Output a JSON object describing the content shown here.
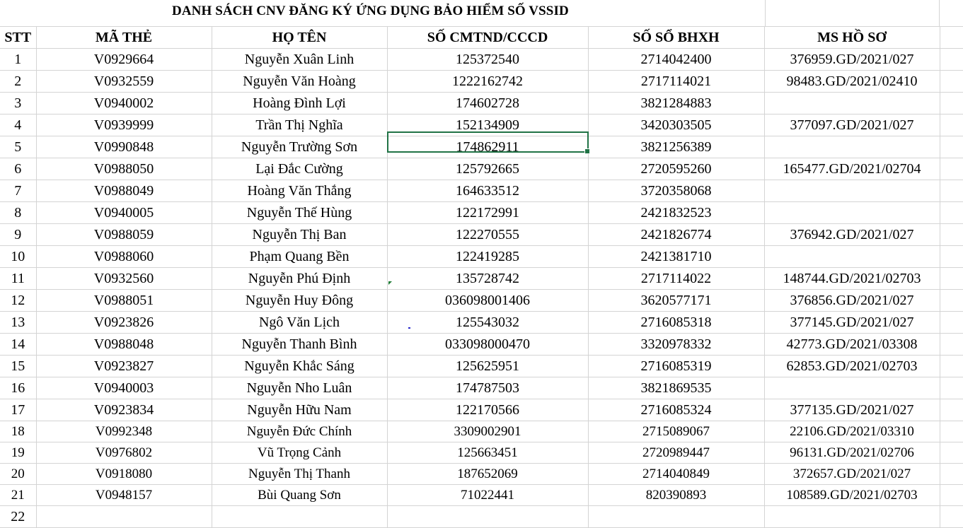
{
  "sheet": {
    "title": "DANH SÁCH CNV ĐĂNG KÝ ỨNG DỤNG BẢO HIỂM SỐ VSSID",
    "headers": [
      "STT",
      "MÃ THẺ",
      "HỌ TÊN",
      "SỐ CMTND/CCCD",
      "SỐ SỔ BHXH",
      "MS HỒ SƠ"
    ],
    "rows": [
      [
        "1",
        "V0929664",
        "Nguyễn Xuân Linh",
        "125372540",
        "2714042400",
        "376959.GD/2021/027"
      ],
      [
        "2",
        "V0932559",
        "Nguyễn Văn Hoàng",
        "1222162742",
        "2717114021",
        "98483.GD/2021/02410"
      ],
      [
        "3",
        "V0940002",
        "Hoàng Đình Lợi",
        "174602728",
        "3821284883",
        ""
      ],
      [
        "4",
        "V0939999",
        "Trần Thị Nghĩa",
        "152134909",
        "3420303505",
        "377097.GD/2021/027"
      ],
      [
        "5",
        "V0990848",
        "Nguyễn Trường Sơn",
        "174862911",
        "3821256389",
        ""
      ],
      [
        "6",
        "V0988050",
        "Lại Đắc Cường",
        "125792665",
        "2720595260",
        "165477.GD/2021/02704"
      ],
      [
        "7",
        "V0988049",
        "Hoàng Văn Thắng",
        "164633512",
        "3720358068",
        ""
      ],
      [
        "8",
        "V0940005",
        "Nguyễn Thế Hùng",
        "122172991",
        "2421832523",
        ""
      ],
      [
        "9",
        "V0988059",
        "Nguyễn Thị Ban",
        "122270555",
        "2421826774",
        "376942.GD/2021/027"
      ],
      [
        "10",
        "V0988060",
        "Phạm Quang Bền",
        "122419285",
        "2421381710",
        ""
      ],
      [
        "11",
        "V0932560",
        "Nguyễn Phú Định",
        "135728742",
        "2717114022",
        "148744.GD/2021/02703"
      ],
      [
        "12",
        "V0988051",
        "Nguyễn Huy Đông",
        "036098001406",
        "3620577171",
        "376856.GD/2021/027"
      ],
      [
        "13",
        "V0923826",
        "Ngô Văn Lịch",
        "125543032",
        "2716085318",
        "377145.GD/2021/027"
      ],
      [
        "14",
        "V0988048",
        "Nguyễn Thanh Bình",
        "033098000470",
        "3320978332",
        "42773.GD/2021/03308"
      ],
      [
        "15",
        "V0923827",
        "Nguyễn Khắc Sáng",
        "125625951",
        "2716085319",
        "62853.GD/2021/02703"
      ],
      [
        "16",
        "V0940003",
        "Nguyễn Nho Luân",
        "174787503",
        "3821869535",
        ""
      ],
      [
        "17",
        "V0923834",
        "Nguyễn Hữu Nam",
        "122170566",
        "2716085324",
        "377135.GD/2021/027"
      ],
      [
        "18",
        "V0992348",
        "Nguyễn Đức Chính",
        "3309002901",
        "2715089067",
        "22106.GD/2021/03310"
      ],
      [
        "19",
        "V0976802",
        "Vũ Trọng Cảnh",
        "125663451",
        "2720989447",
        "96131.GD/2021/02706"
      ],
      [
        "20",
        "V0918080",
        "Nguyễn Thị Thanh",
        "187652069",
        "2714040849",
        "372657.GD/2021/027"
      ],
      [
        "21",
        "V0948157",
        "Bùi Quang Sơn",
        "71022441",
        "820390893",
        "108589.GD/2021/02703"
      ],
      [
        "22",
        "",
        "",
        "",
        "",
        ""
      ]
    ]
  },
  "colors": {
    "grid": "#d4d4d4",
    "selection": "#217346",
    "comment_marker": "#1e7b34"
  },
  "icons": {
    "comment_indicator": "comment-triangle-icon"
  }
}
